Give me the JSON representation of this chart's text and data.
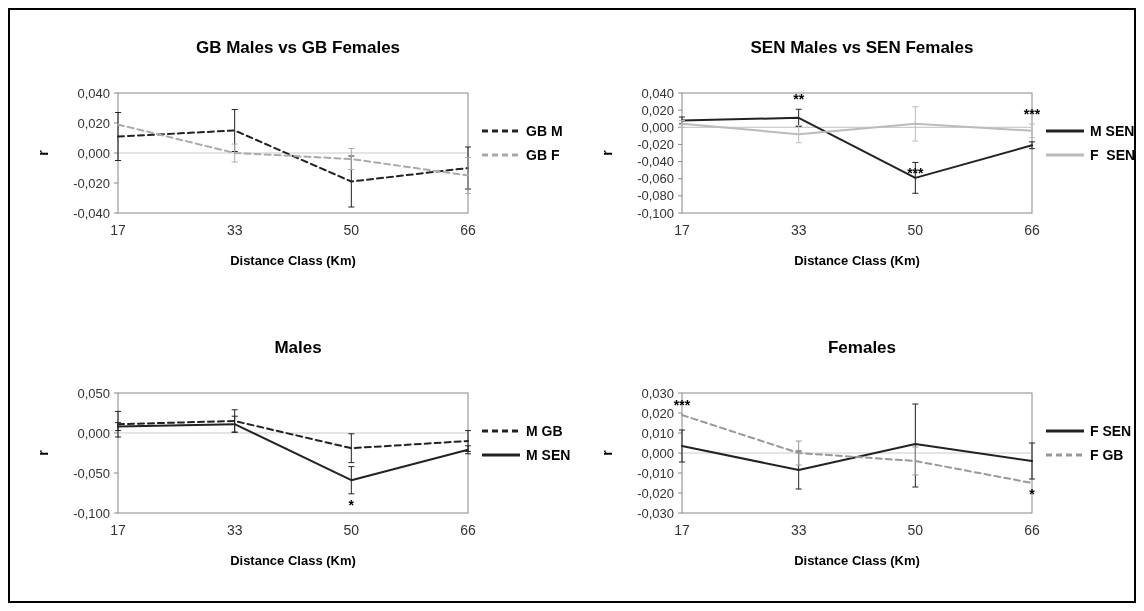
{
  "chart_data": [
    {
      "type": "line",
      "title": "GB Males vs GB Females",
      "xlabel": "Distance Class (Km)",
      "ylabel": "r",
      "categories": [
        "17",
        "33",
        "50",
        "66"
      ],
      "ylim": [
        -0.04,
        0.04
      ],
      "yticks": [
        {
          "value": -0.04,
          "label": "-0,040"
        },
        {
          "value": -0.02,
          "label": "-0,020"
        },
        {
          "value": 0,
          "label": "0,000"
        },
        {
          "value": 0.02,
          "label": "0,020"
        },
        {
          "value": 0.04,
          "label": "0,040"
        }
      ],
      "legend": "right",
      "marker": "none",
      "ref_lines": [
        {
          "axis": "y",
          "value": 0,
          "color": "#cccccc"
        }
      ],
      "series": [
        {
          "name": "GB M",
          "color": "#222222",
          "line_style": "dashed",
          "values": [
            0.011,
            0.015,
            -0.019,
            -0.01
          ],
          "errors": [
            0.016,
            0.014,
            0.017,
            0.014
          ]
        },
        {
          "name": "GB F",
          "color": "#aaaaaa",
          "line_style": "dashed",
          "values": [
            0.019,
            0.0,
            -0.004,
            -0.015
          ],
          "errors": [
            null,
            0.006,
            0.007,
            0.012
          ]
        }
      ]
    },
    {
      "type": "line",
      "title": "SEN Males vs SEN Females",
      "xlabel": "Distance Class (Km)",
      "ylabel": "r",
      "categories": [
        "17",
        "33",
        "50",
        "66"
      ],
      "ylim": [
        -0.1,
        0.04
      ],
      "yticks": [
        {
          "value": -0.1,
          "label": "-0,100"
        },
        {
          "value": -0.08,
          "label": "-0,080"
        },
        {
          "value": -0.06,
          "label": "-0,060"
        },
        {
          "value": -0.04,
          "label": "-0,040"
        },
        {
          "value": -0.02,
          "label": "-0,020"
        },
        {
          "value": 0,
          "label": "0,000"
        },
        {
          "value": 0.02,
          "label": "0,020"
        },
        {
          "value": 0.04,
          "label": "0,040"
        }
      ],
      "legend": "right",
      "marker": "none",
      "ref_lines": [
        {
          "axis": "y",
          "value": 0,
          "color": "#cccccc"
        }
      ],
      "annotations": [
        {
          "text": "**",
          "x": "33",
          "y": 0.021
        },
        {
          "text": "***",
          "x": "50",
          "y": -0.041
        },
        {
          "text": "***",
          "x": "66",
          "y": 0.004
        }
      ],
      "series": [
        {
          "name": "M SEN",
          "color": "#222222",
          "line_style": "solid",
          "values": [
            0.008,
            0.011,
            -0.059,
            -0.021
          ],
          "errors": [
            0.004,
            0.01,
            0.018,
            0.004
          ]
        },
        {
          "name": "F  SEN",
          "color": "#bbbbbb",
          "line_style": "solid",
          "values": [
            0.004,
            -0.008,
            0.004,
            -0.004
          ],
          "errors": [
            0.004,
            0.01,
            0.02,
            0.008
          ]
        }
      ]
    },
    {
      "type": "line",
      "title": "Males",
      "xlabel": "Distance Class (Km)",
      "ylabel": "r",
      "categories": [
        "17",
        "33",
        "50",
        "66"
      ],
      "ylim": [
        -0.1,
        0.05
      ],
      "yticks": [
        {
          "value": -0.1,
          "label": "-0,100"
        },
        {
          "value": -0.05,
          "label": "-0,050"
        },
        {
          "value": 0,
          "label": "0,000"
        },
        {
          "value": 0.05,
          "label": "0,050"
        }
      ],
      "legend": "right",
      "marker": "none",
      "ref_lines": [
        {
          "axis": "y",
          "value": 0,
          "color": "#cccccc"
        }
      ],
      "annotations": [
        {
          "text": "*",
          "x": "50",
          "y": -0.076
        }
      ],
      "series": [
        {
          "name": "M GB",
          "color": "#222222",
          "line_style": "dashed",
          "values": [
            0.011,
            0.015,
            -0.019,
            -0.01
          ],
          "errors": [
            0.016,
            0.014,
            0.018,
            0.013
          ]
        },
        {
          "name": "M SEN",
          "color": "#222222",
          "line_style": "solid",
          "values": [
            0.008,
            0.011,
            -0.059,
            -0.021
          ],
          "errors": [
            0.005,
            0.01,
            0.017,
            0.005
          ]
        }
      ]
    },
    {
      "type": "line",
      "title": "Females",
      "xlabel": "Distance Class (Km)",
      "ylabel": "r",
      "categories": [
        "17",
        "33",
        "50",
        "66"
      ],
      "ylim": [
        -0.03,
        0.03
      ],
      "yticks": [
        {
          "value": -0.03,
          "label": "-0,030"
        },
        {
          "value": -0.02,
          "label": "-0,020"
        },
        {
          "value": -0.01,
          "label": "-0,010"
        },
        {
          "value": 0,
          "label": "0,000"
        },
        {
          "value": 0.01,
          "label": "0,010"
        },
        {
          "value": 0.02,
          "label": "0,020"
        },
        {
          "value": 0.03,
          "label": "0,030"
        }
      ],
      "legend": "right",
      "marker": "none",
      "ref_lines": [
        {
          "axis": "y",
          "value": 0,
          "color": "#cccccc"
        }
      ],
      "annotations": [
        {
          "text": "***",
          "x": "17",
          "y": 0.019
        },
        {
          "text": "*",
          "x": "66",
          "y": -0.015
        }
      ],
      "series": [
        {
          "name": "F SEN",
          "color": "#222222",
          "line_style": "solid",
          "values": [
            0.0035,
            -0.0085,
            0.0045,
            -0.004
          ],
          "errors": [
            0.008,
            0.0095,
            [
              -0.017,
              0.0245
            ],
            0.009
          ]
        },
        {
          "name": "F GB",
          "color": "#999999",
          "line_style": "dashed",
          "values": [
            0.019,
            0.0,
            -0.004,
            -0.015
          ],
          "errors": [
            null,
            0.006,
            0.007,
            null
          ]
        }
      ]
    }
  ]
}
